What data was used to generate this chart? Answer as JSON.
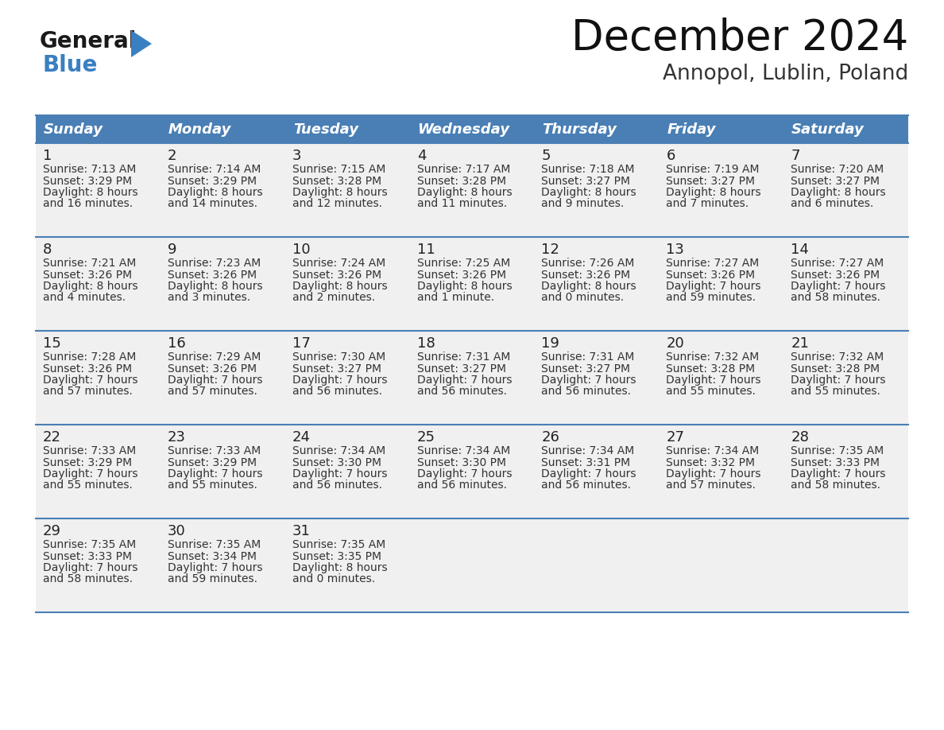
{
  "title": "December 2024",
  "subtitle": "Annopol, Lublin, Poland",
  "header_bg": "#4a7fb5",
  "header_text": "#ffffff",
  "row_line_color": "#4a7fb5",
  "cell_bg": "#f0f0f0",
  "day_names": [
    "Sunday",
    "Monday",
    "Tuesday",
    "Wednesday",
    "Thursday",
    "Friday",
    "Saturday"
  ],
  "weeks": [
    [
      {
        "day": "1",
        "sunrise": "7:13 AM",
        "sunset": "3:29 PM",
        "daylight1": "8 hours",
        "daylight2": "and 16 minutes."
      },
      {
        "day": "2",
        "sunrise": "7:14 AM",
        "sunset": "3:29 PM",
        "daylight1": "8 hours",
        "daylight2": "and 14 minutes."
      },
      {
        "day": "3",
        "sunrise": "7:15 AM",
        "sunset": "3:28 PM",
        "daylight1": "8 hours",
        "daylight2": "and 12 minutes."
      },
      {
        "day": "4",
        "sunrise": "7:17 AM",
        "sunset": "3:28 PM",
        "daylight1": "8 hours",
        "daylight2": "and 11 minutes."
      },
      {
        "day": "5",
        "sunrise": "7:18 AM",
        "sunset": "3:27 PM",
        "daylight1": "8 hours",
        "daylight2": "and 9 minutes."
      },
      {
        "day": "6",
        "sunrise": "7:19 AM",
        "sunset": "3:27 PM",
        "daylight1": "8 hours",
        "daylight2": "and 7 minutes."
      },
      {
        "day": "7",
        "sunrise": "7:20 AM",
        "sunset": "3:27 PM",
        "daylight1": "8 hours",
        "daylight2": "and 6 minutes."
      }
    ],
    [
      {
        "day": "8",
        "sunrise": "7:21 AM",
        "sunset": "3:26 PM",
        "daylight1": "8 hours",
        "daylight2": "and 4 minutes."
      },
      {
        "day": "9",
        "sunrise": "7:23 AM",
        "sunset": "3:26 PM",
        "daylight1": "8 hours",
        "daylight2": "and 3 minutes."
      },
      {
        "day": "10",
        "sunrise": "7:24 AM",
        "sunset": "3:26 PM",
        "daylight1": "8 hours",
        "daylight2": "and 2 minutes."
      },
      {
        "day": "11",
        "sunrise": "7:25 AM",
        "sunset": "3:26 PM",
        "daylight1": "8 hours",
        "daylight2": "and 1 minute."
      },
      {
        "day": "12",
        "sunrise": "7:26 AM",
        "sunset": "3:26 PM",
        "daylight1": "8 hours",
        "daylight2": "and 0 minutes."
      },
      {
        "day": "13",
        "sunrise": "7:27 AM",
        "sunset": "3:26 PM",
        "daylight1": "7 hours",
        "daylight2": "and 59 minutes."
      },
      {
        "day": "14",
        "sunrise": "7:27 AM",
        "sunset": "3:26 PM",
        "daylight1": "7 hours",
        "daylight2": "and 58 minutes."
      }
    ],
    [
      {
        "day": "15",
        "sunrise": "7:28 AM",
        "sunset": "3:26 PM",
        "daylight1": "7 hours",
        "daylight2": "and 57 minutes."
      },
      {
        "day": "16",
        "sunrise": "7:29 AM",
        "sunset": "3:26 PM",
        "daylight1": "7 hours",
        "daylight2": "and 57 minutes."
      },
      {
        "day": "17",
        "sunrise": "7:30 AM",
        "sunset": "3:27 PM",
        "daylight1": "7 hours",
        "daylight2": "and 56 minutes."
      },
      {
        "day": "18",
        "sunrise": "7:31 AM",
        "sunset": "3:27 PM",
        "daylight1": "7 hours",
        "daylight2": "and 56 minutes."
      },
      {
        "day": "19",
        "sunrise": "7:31 AM",
        "sunset": "3:27 PM",
        "daylight1": "7 hours",
        "daylight2": "and 56 minutes."
      },
      {
        "day": "20",
        "sunrise": "7:32 AM",
        "sunset": "3:28 PM",
        "daylight1": "7 hours",
        "daylight2": "and 55 minutes."
      },
      {
        "day": "21",
        "sunrise": "7:32 AM",
        "sunset": "3:28 PM",
        "daylight1": "7 hours",
        "daylight2": "and 55 minutes."
      }
    ],
    [
      {
        "day": "22",
        "sunrise": "7:33 AM",
        "sunset": "3:29 PM",
        "daylight1": "7 hours",
        "daylight2": "and 55 minutes."
      },
      {
        "day": "23",
        "sunrise": "7:33 AM",
        "sunset": "3:29 PM",
        "daylight1": "7 hours",
        "daylight2": "and 55 minutes."
      },
      {
        "day": "24",
        "sunrise": "7:34 AM",
        "sunset": "3:30 PM",
        "daylight1": "7 hours",
        "daylight2": "and 56 minutes."
      },
      {
        "day": "25",
        "sunrise": "7:34 AM",
        "sunset": "3:30 PM",
        "daylight1": "7 hours",
        "daylight2": "and 56 minutes."
      },
      {
        "day": "26",
        "sunrise": "7:34 AM",
        "sunset": "3:31 PM",
        "daylight1": "7 hours",
        "daylight2": "and 56 minutes."
      },
      {
        "day": "27",
        "sunrise": "7:34 AM",
        "sunset": "3:32 PM",
        "daylight1": "7 hours",
        "daylight2": "and 57 minutes."
      },
      {
        "day": "28",
        "sunrise": "7:35 AM",
        "sunset": "3:33 PM",
        "daylight1": "7 hours",
        "daylight2": "and 58 minutes."
      }
    ],
    [
      {
        "day": "29",
        "sunrise": "7:35 AM",
        "sunset": "3:33 PM",
        "daylight1": "7 hours",
        "daylight2": "and 58 minutes."
      },
      {
        "day": "30",
        "sunrise": "7:35 AM",
        "sunset": "3:34 PM",
        "daylight1": "7 hours",
        "daylight2": "and 59 minutes."
      },
      {
        "day": "31",
        "sunrise": "7:35 AM",
        "sunset": "3:35 PM",
        "daylight1": "8 hours",
        "daylight2": "and 0 minutes."
      },
      null,
      null,
      null,
      null
    ]
  ],
  "logo_general_color": "#1a1a1a",
  "logo_blue_color": "#3a7fc1",
  "logo_triangle_color": "#3a7fc1",
  "title_fontsize": 38,
  "subtitle_fontsize": 19,
  "header_fontsize": 13,
  "day_num_fontsize": 13,
  "cell_fontsize": 10
}
